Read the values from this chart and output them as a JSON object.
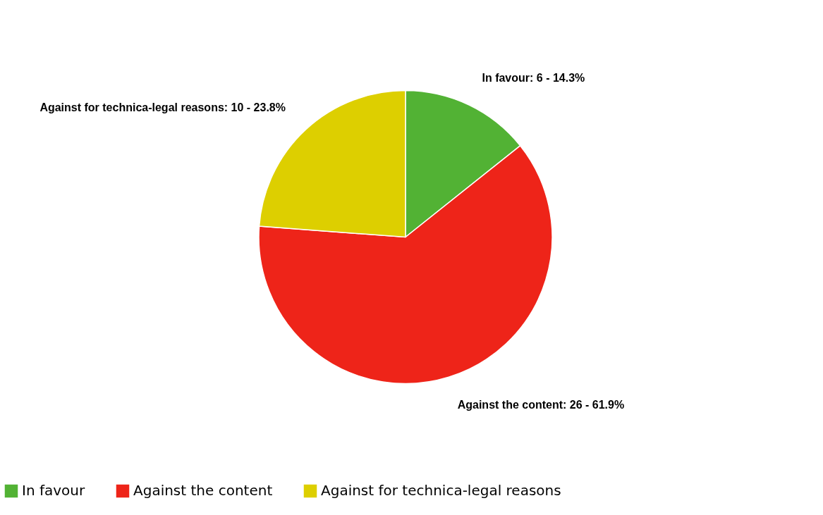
{
  "chart_data": {
    "type": "pie",
    "categories": [
      "In favour",
      "Against the content",
      "Against for technica-legal reasons"
    ],
    "values": [
      6,
      26,
      10
    ],
    "colors": [
      "#52b234",
      "#ee2419",
      "#ddcf00"
    ],
    "value_labels": [
      "In favour: 6 - 14.3%",
      "Against the content: 26 - 61.9%",
      "Against for technica-legal reasons: 10 - 23.8%"
    ],
    "legend": "bottom"
  }
}
